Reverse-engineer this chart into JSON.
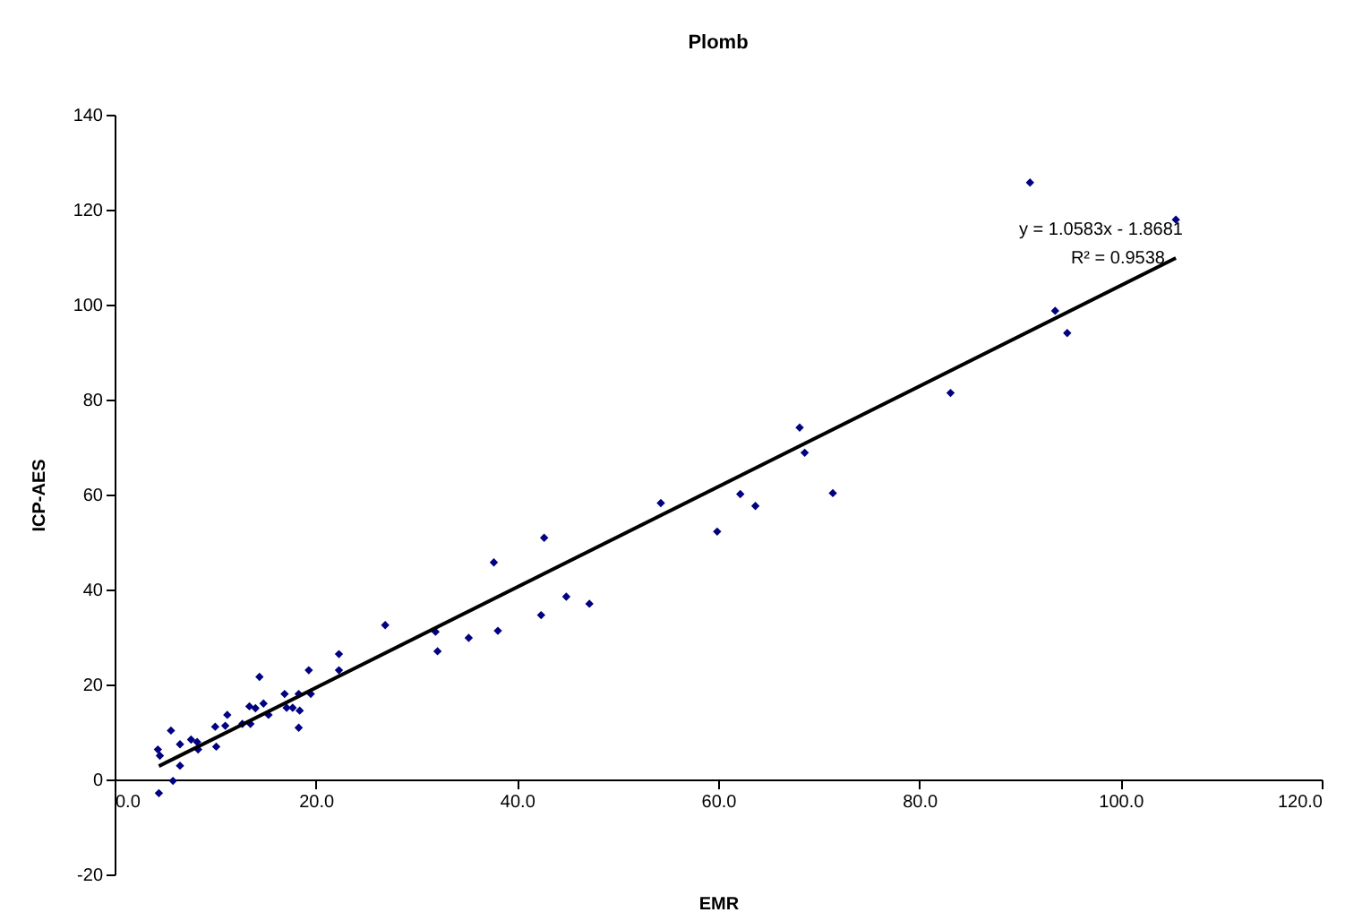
{
  "chart_data": {
    "type": "scatter",
    "title": "Plomb",
    "xlabel": "EMR",
    "ylabel": "ICP-AES",
    "xlim": [
      0,
      120
    ],
    "ylim": [
      -20,
      140
    ],
    "xticks": [
      {
        "value": 0,
        "label": "0.0"
      },
      {
        "value": 20,
        "label": "20.0"
      },
      {
        "value": 40,
        "label": "40.0"
      },
      {
        "value": 60,
        "label": "60.0"
      },
      {
        "value": 80,
        "label": "80.0"
      },
      {
        "value": 100,
        "label": "100.0"
      },
      {
        "value": 120,
        "label": "120.0"
      }
    ],
    "yticks": [
      -20,
      0,
      20,
      40,
      60,
      80,
      100,
      120,
      140
    ],
    "annotations": [
      "y = 1.0583x - 1.8681",
      "R² = 0.9538"
    ],
    "series": [
      {
        "color": "#000080",
        "marker": "diamond",
        "x": [
          4.4,
          5.8,
          6.5,
          4.3,
          4.5,
          5.6,
          6.5,
          7.6,
          8.3,
          8.2,
          10.1,
          10.0,
          11.2,
          11.0,
          12.7,
          13.5,
          13.4,
          14.4,
          14.8,
          14.0,
          15.3,
          16.9,
          17.1,
          17.7,
          18.3,
          18.4,
          18.3,
          19.3,
          19.5,
          22.3,
          22.3,
          26.9,
          31.9,
          32.1,
          35.2,
          37.7,
          38.1,
          42.4,
          42.7,
          44.9,
          47.2,
          54.3,
          59.9,
          62.2,
          63.7,
          68.1,
          68.6,
          71.4,
          83.1,
          91.0,
          93.5,
          94.7,
          105.5
        ],
        "values": [
          -2.9,
          -0.3,
          2.9,
          6.3,
          5.0,
          10.3,
          7.4,
          8.4,
          6.3,
          7.9,
          6.9,
          11.1,
          13.6,
          11.3,
          11.7,
          11.7,
          15.4,
          21.6,
          16.0,
          15.0,
          13.6,
          18.0,
          15.1,
          15.1,
          18.0,
          14.5,
          10.9,
          23.0,
          18.0,
          26.4,
          23.0,
          32.5,
          31.1,
          27.0,
          29.8,
          45.7,
          31.3,
          34.6,
          50.9,
          38.5,
          37.0,
          58.2,
          52.2,
          60.1,
          57.6,
          74.1,
          68.8,
          60.3,
          81.4,
          125.7,
          98.7,
          94.0,
          117.9
        ]
      },
      {
        "type": "line",
        "color": "#000000",
        "x": [
          4.4,
          105.5
        ],
        "values": [
          2.8,
          109.8
        ]
      }
    ]
  }
}
